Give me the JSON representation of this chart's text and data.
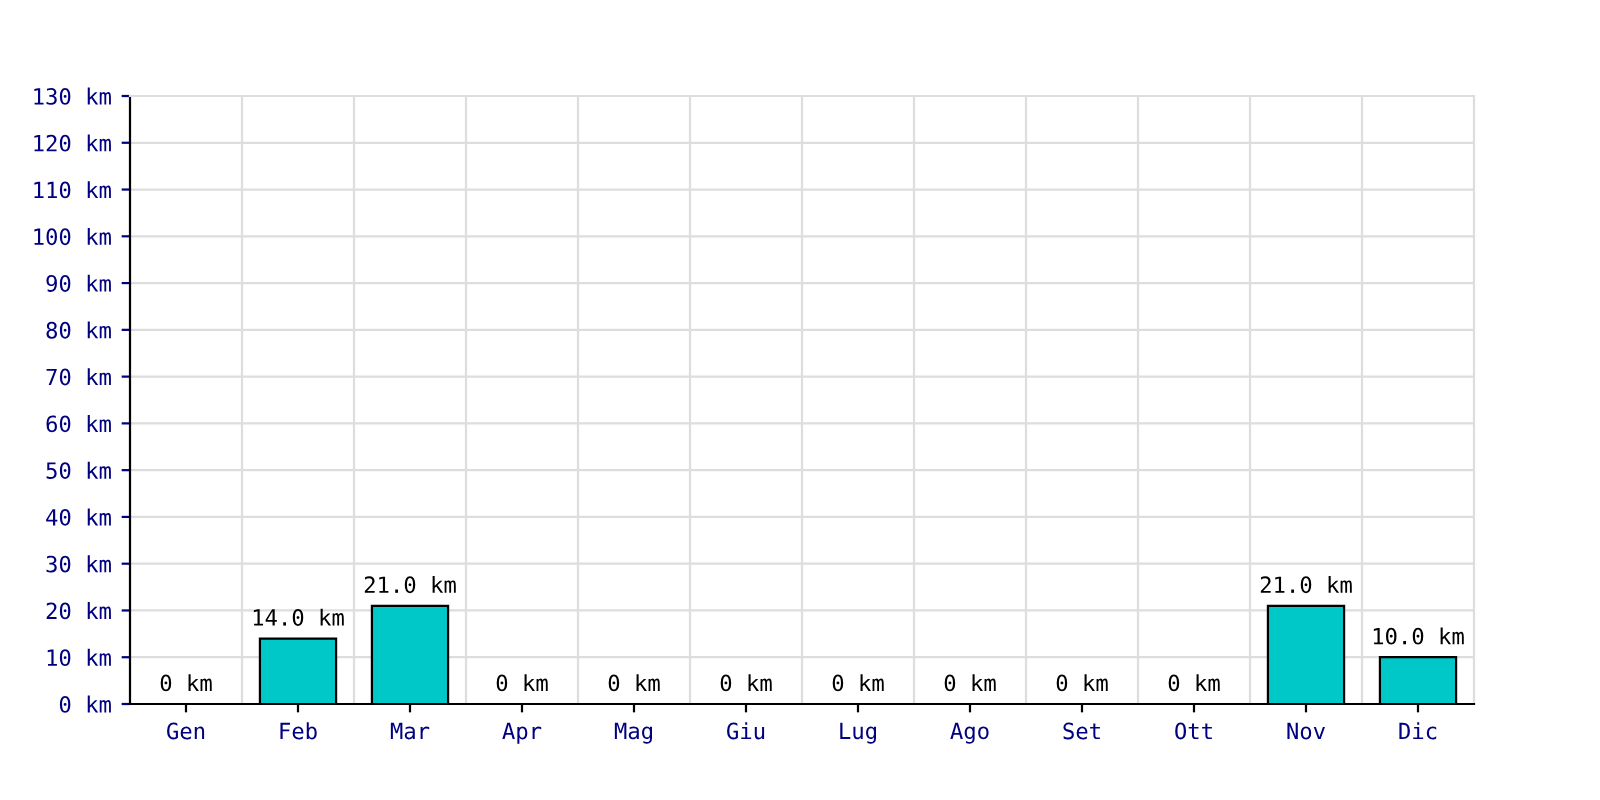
{
  "chart_data": {
    "type": "bar",
    "categories": [
      "Gen",
      "Feb",
      "Mar",
      "Apr",
      "Mag",
      "Giu",
      "Lug",
      "Ago",
      "Set",
      "Ott",
      "Nov",
      "Dic"
    ],
    "values": [
      0,
      14,
      21,
      0,
      0,
      0,
      0,
      0,
      0,
      0,
      21,
      10
    ],
    "value_labels": [
      "0 km",
      "14.0 km",
      "21.0 km",
      "0 km",
      "0 km",
      "0 km",
      "0 km",
      "0 km",
      "0 km",
      "0 km",
      "21.0 km",
      "10.0 km"
    ],
    "color": "#00c8c8",
    "ylim": [
      0,
      130
    ],
    "yticks": [
      {
        "value": 0,
        "label": "0 km"
      },
      {
        "value": 10,
        "label": "10 km"
      },
      {
        "value": 20,
        "label": "20 km"
      },
      {
        "value": 30,
        "label": "30 km"
      },
      {
        "value": 40,
        "label": "40 km"
      },
      {
        "value": 50,
        "label": "50 km"
      },
      {
        "value": 60,
        "label": "60 km"
      },
      {
        "value": 70,
        "label": "70 km"
      },
      {
        "value": 80,
        "label": "80 km"
      },
      {
        "value": 90,
        "label": "90 km"
      },
      {
        "value": 100,
        "label": "100 km"
      },
      {
        "value": 110,
        "label": "110 km"
      },
      {
        "value": 120,
        "label": "120 km"
      },
      {
        "value": 130,
        "label": "130 km"
      }
    ],
    "grid": true,
    "legend": false
  }
}
